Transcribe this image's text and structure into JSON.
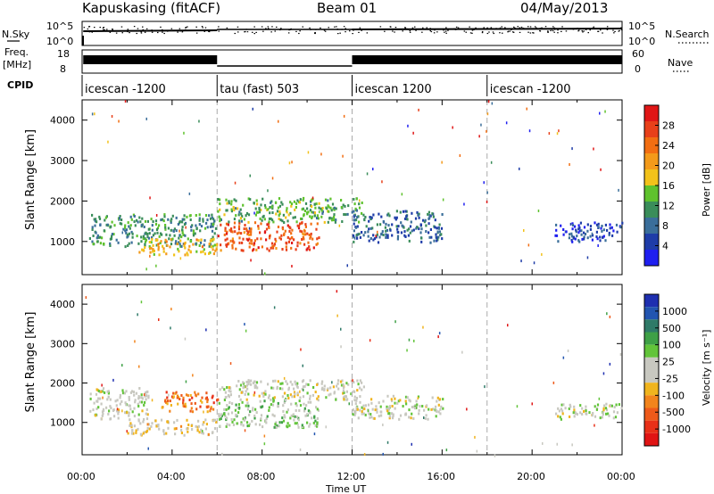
{
  "header": {
    "radar": "Kapuskasing (fitACF)",
    "beam": "Beam 01",
    "date": "04/May/2013"
  },
  "left_labels": {
    "nsky": "N.Sky",
    "freq": "Freq.",
    "freq_unit": "[MHz]",
    "cpid": "CPID"
  },
  "right_labels": {
    "nsearch": "N.Search",
    "nave": "Nave"
  },
  "noise_axis": {
    "top": "10^5",
    "bottom": "10^0"
  },
  "freq_axis": {
    "top": "18",
    "bottom": "8"
  },
  "nave_axis": {
    "top": "60",
    "bottom": "0"
  },
  "cpid_segments": [
    {
      "label": "icescan -1200",
      "start_h": 0
    },
    {
      "label": "tau (fast) 503",
      "start_h": 6
    },
    {
      "label": "icescan 1200",
      "start_h": 12
    },
    {
      "label": "icescan -1200",
      "start_h": 18
    }
  ],
  "x_axis": {
    "title": "Time UT",
    "ticks": [
      "00:00",
      "04:00",
      "08:00",
      "12:00",
      "16:00",
      "20:00",
      "00:00"
    ],
    "range_h": [
      0,
      24
    ]
  },
  "panels": {
    "power": {
      "ylabel": "Slant Range [km]",
      "yticks": [
        "1000",
        "2000",
        "3000",
        "4000"
      ],
      "colorbar_title": "Power [dB]",
      "colorbar_labels": [
        "4",
        "8",
        "12",
        "16",
        "20",
        "24",
        "28"
      ],
      "colors": [
        "#1f1ff0",
        "#1e3ca8",
        "#3a6e9a",
        "#3a8d5a",
        "#5fc22d",
        "#f2c21a",
        "#f39a1a",
        "#f26e12",
        "#e8401a",
        "#e01616"
      ]
    },
    "velocity": {
      "ylabel": "Slant Range [km]",
      "yticks": [
        "1000",
        "2000",
        "3000",
        "4000"
      ],
      "colorbar_title": "Velocity [m s⁻¹]",
      "colorbar_labels": [
        "1000",
        "500",
        "100",
        "25",
        "-25",
        "-100",
        "-500",
        "-1000"
      ],
      "colors": [
        "#1e2fb0",
        "#2255b0",
        "#2f7a68",
        "#3ea046",
        "#62c43a",
        "#c8c8c0",
        "#c8c8c0",
        "#f0b41e",
        "#f2841c",
        "#ee5a1a",
        "#e83018",
        "#e01414"
      ]
    }
  },
  "chart_data": [
    {
      "type": "heatmap",
      "title": "Power",
      "xlabel": "Time UT",
      "ylabel": "Slant Range [km]",
      "xlim": [
        0,
        24
      ],
      "ylim": [
        180,
        4500
      ],
      "zlabel": "Power [dB]",
      "zlim": [
        0,
        30
      ],
      "regions": [
        {
          "t0": 0.3,
          "t1": 6.0,
          "r0": 900,
          "r1": 1700,
          "value": 10
        },
        {
          "t0": 2.5,
          "t1": 6.0,
          "r0": 700,
          "r1": 1100,
          "value": 18
        },
        {
          "t0": 6.0,
          "t1": 10.5,
          "r0": 800,
          "r1": 1500,
          "value": 24
        },
        {
          "t0": 6.0,
          "t1": 12.5,
          "r0": 1500,
          "r1": 2100,
          "value": 12
        },
        {
          "t0": 12.0,
          "t1": 16.0,
          "r0": 1000,
          "r1": 1800,
          "value": 7
        },
        {
          "t0": 21.0,
          "t1": 24.0,
          "r0": 1000,
          "r1": 1500,
          "value": 5
        }
      ]
    },
    {
      "type": "heatmap",
      "title": "Velocity",
      "xlabel": "Time UT",
      "ylabel": "Slant Range [km]",
      "xlim": [
        0,
        24
      ],
      "ylim": [
        180,
        4500
      ],
      "zlabel": "Velocity [m s-1]",
      "zlim": [
        -1000,
        1000
      ],
      "regions": [
        {
          "t0": 0.3,
          "t1": 3.0,
          "r0": 1100,
          "r1": 1900,
          "value": 0
        },
        {
          "t0": 2.0,
          "t1": 6.0,
          "r0": 700,
          "r1": 1100,
          "value": -100
        },
        {
          "t0": 3.5,
          "t1": 6.0,
          "r0": 1300,
          "r1": 1800,
          "value": -500
        },
        {
          "t0": 6.0,
          "t1": 10.5,
          "r0": 900,
          "r1": 1600,
          "value": 200
        },
        {
          "t0": 6.0,
          "t1": 12.5,
          "r0": 1600,
          "r1": 2100,
          "value": 0
        },
        {
          "t0": 12.0,
          "t1": 16.0,
          "r0": 1100,
          "r1": 1700,
          "value": 0
        },
        {
          "t0": 21.0,
          "t1": 24.0,
          "r0": 1100,
          "r1": 1500,
          "value": 0
        }
      ]
    }
  ]
}
